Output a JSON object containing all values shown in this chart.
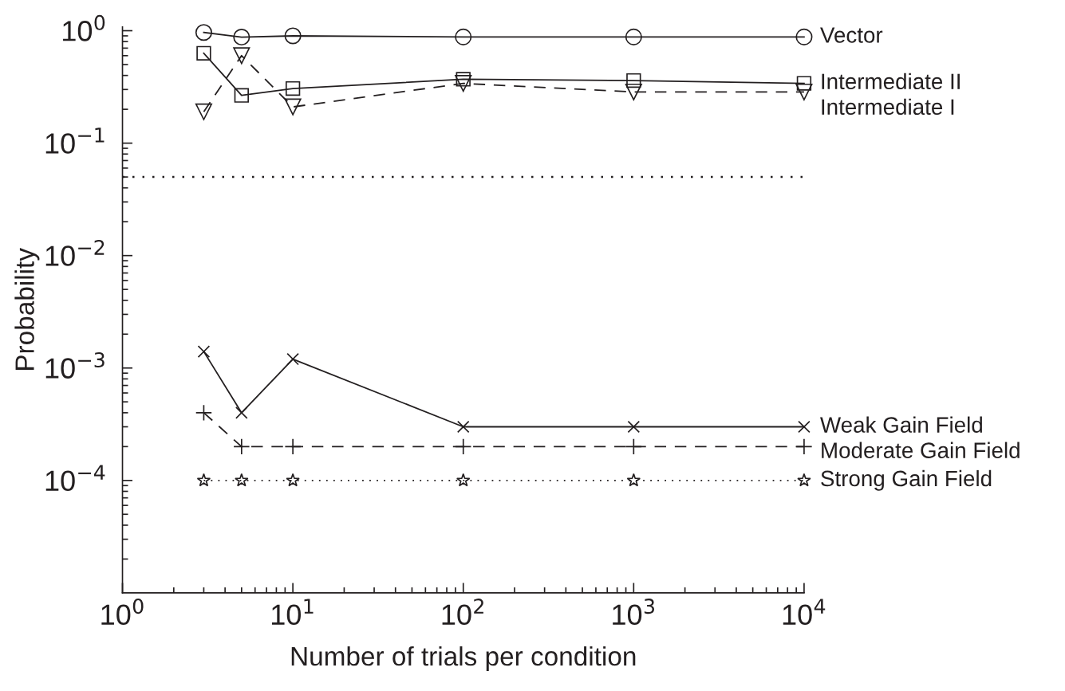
{
  "chart_data": {
    "type": "line",
    "xlabel": "Number of trials per condition",
    "ylabel": "Probability",
    "log": "xy",
    "grid": false,
    "legend": false,
    "x": [
      3,
      5,
      10,
      100,
      1000,
      10000
    ],
    "xlim": [
      1,
      10000
    ],
    "ylim": [
      1e-05,
      1.08
    ],
    "xticks": [
      {
        "value": 1,
        "label": "10$^{0}$"
      },
      {
        "value": 10,
        "label": "10$^{1}$"
      },
      {
        "value": 100,
        "label": "10$^{2}$"
      },
      {
        "value": 1000,
        "label": "10$^{3}$"
      },
      {
        "value": 10000,
        "label": "10$^{4}$"
      }
    ],
    "yticks": [
      {
        "value": 0.0001,
        "label": "10$^{−4}$"
      },
      {
        "value": 0.001,
        "label": "10$^{−3}$"
      },
      {
        "value": 0.01,
        "label": "10$^{−2}$"
      },
      {
        "value": 0.1,
        "label": "10$^{−1}$"
      },
      {
        "value": 1,
        "label": "10$^{0}$"
      }
    ],
    "ref_lines": [
      {
        "axis": "y",
        "value": 0.05,
        "color": "#231f20",
        "line_style": "dotted"
      }
    ],
    "series": [
      {
        "name": "Vector",
        "color": "#231f20",
        "marker": "circle",
        "line_style": "solid",
        "values": [
          0.965,
          0.877,
          0.9,
          0.88,
          0.88,
          0.88
        ]
      },
      {
        "name": "Intermediate II",
        "color": "#231f20",
        "marker": "square",
        "line_style": "solid",
        "values": [
          0.63,
          0.266,
          0.306,
          0.37,
          0.36,
          0.34
        ]
      },
      {
        "name": "Intermediate I",
        "color": "#231f20",
        "marker": "triangle",
        "line_style": "dashed",
        "values": [
          0.19,
          0.6,
          0.21,
          0.34,
          0.285,
          0.285
        ]
      },
      {
        "name": "Weak Gain Field",
        "color": "#231f20",
        "marker": "cross",
        "line_style": "solid",
        "values": [
          0.0014,
          0.0004,
          0.0012,
          0.0003,
          0.0003,
          0.0003
        ]
      },
      {
        "name": "Moderate Gain Field",
        "color": "#231f20",
        "marker": "plus",
        "line_style": "dashed",
        "values": [
          0.0004,
          0.0002,
          0.0002,
          0.0002,
          0.0002,
          0.0002
        ]
      },
      {
        "name": "Strong Gain Field",
        "color": "#231f20",
        "marker": "star",
        "line_style": "dotted",
        "values": [
          0.0001,
          0.0001,
          0.0001,
          0.0001,
          0.0001,
          0.0001
        ]
      }
    ]
  }
}
